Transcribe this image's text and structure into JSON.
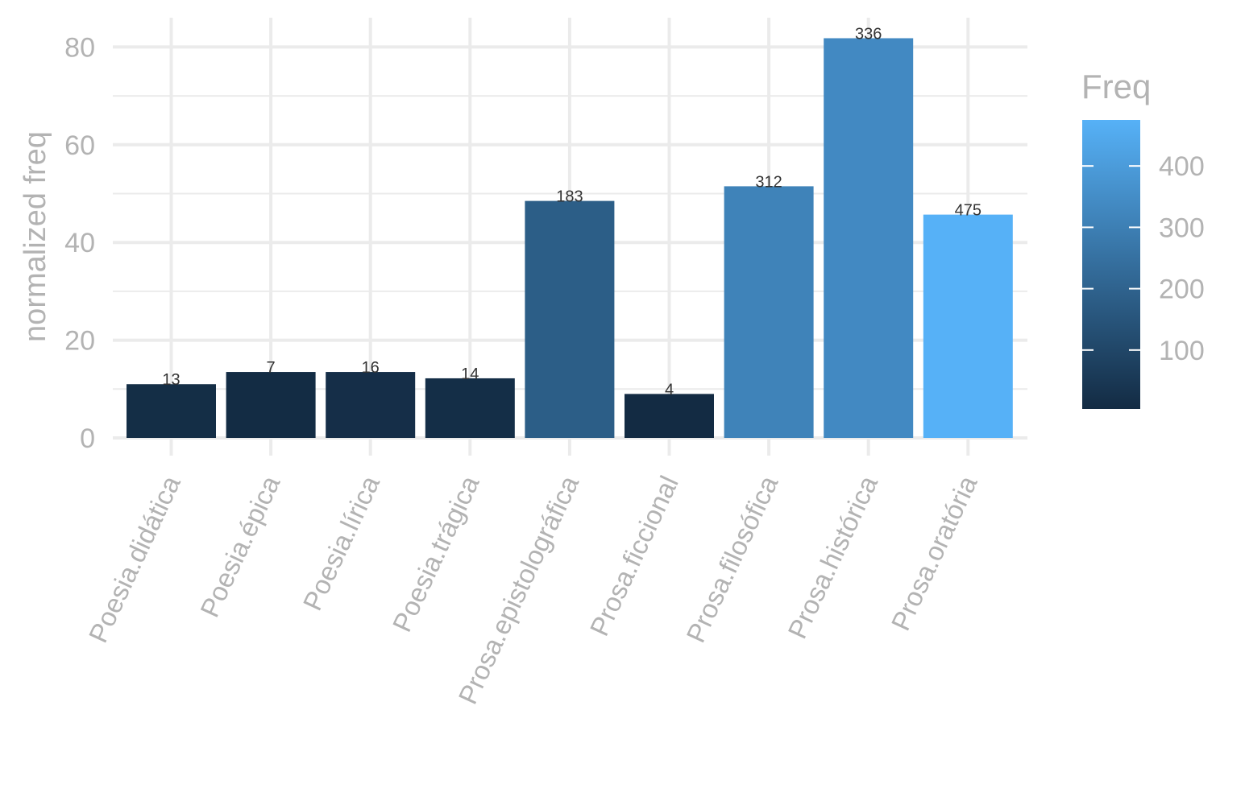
{
  "chart_data": {
    "type": "bar",
    "title": "",
    "xlabel": "",
    "ylabel": "normalized freq",
    "ylim": [
      0,
      84
    ],
    "yticks": [
      0,
      20,
      40,
      60,
      80
    ],
    "grid": true,
    "legend_position": "right",
    "categories": [
      "Poesia.didática",
      "Poesia.épica",
      "Poesia.lírica",
      "Poesia.trágica",
      "Prosa.epistolográfica",
      "Prosa.ficcional",
      "Prosa.filosófica",
      "Prosa.histórica",
      "Prosa.oratória"
    ],
    "values": [
      11,
      13.5,
      13.5,
      12.2,
      48.5,
      9,
      51.5,
      81.8,
      45.7
    ],
    "labels": [
      "13",
      "7",
      "16",
      "14",
      "183",
      "4",
      "312",
      "336",
      "475"
    ],
    "fill_values": [
      13,
      7,
      16,
      14,
      183,
      4,
      312,
      336,
      475
    ],
    "colorbar": {
      "title": "Freq",
      "min": 4,
      "max": 475,
      "ticks": [
        100,
        200,
        300,
        400
      ],
      "low_color": "#132B43",
      "high_color": "#56B1F7"
    },
    "colors": {
      "axis_text": "#B3B3B3",
      "grid": "#EBEBEB",
      "bar_label": "#333333"
    }
  }
}
